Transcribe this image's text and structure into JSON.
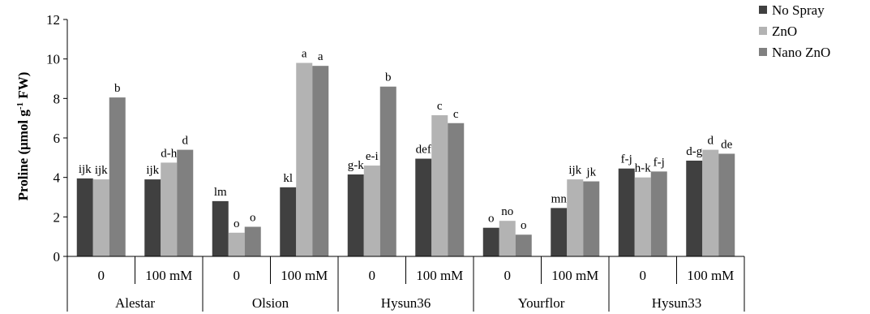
{
  "chart_data": {
    "type": "bar",
    "ylabel": "Proline (μmol g",
    "ylabel_sup": "-1",
    "ylabel_tail": " FW)",
    "ylim": [
      0,
      12
    ],
    "yticks": [
      "0",
      "2",
      "4",
      "6",
      "8",
      "10",
      "12"
    ],
    "grid": false,
    "legend_position": "top-right",
    "categories": [
      {
        "level1": "0",
        "group": "Alestar"
      },
      {
        "level1": "100 mM",
        "group": "Alestar"
      },
      {
        "level1": "0",
        "group": "Olsion"
      },
      {
        "level1": "100 mM",
        "group": "Olsion"
      },
      {
        "level1": "0",
        "group": "Hysun36"
      },
      {
        "level1": "100 mM",
        "group": "Hysun36"
      },
      {
        "level1": "0",
        "group": "Yourflor"
      },
      {
        "level1": "100 mM",
        "group": "Yourflor"
      },
      {
        "level1": "0",
        "group": "Hysun33"
      },
      {
        "level1": "100 mM",
        "group": "Hysun33"
      }
    ],
    "groups": [
      "Alestar",
      "Olsion",
      "Hysun36",
      "Yourflor",
      "Hysun33"
    ],
    "series": [
      {
        "name": "No Spray",
        "color": "#404040",
        "values": [
          3.95,
          3.9,
          2.8,
          3.5,
          4.15,
          4.95,
          1.45,
          2.45,
          4.45,
          4.85
        ],
        "labels": [
          "ijk",
          "ijk",
          "lm",
          "kl",
          "g-k",
          "def",
          "o",
          "mn",
          "f-j",
          "d-g"
        ]
      },
      {
        "name": "ZnO",
        "color": "#b3b3b3",
        "values": [
          3.9,
          4.75,
          1.2,
          9.8,
          4.6,
          7.15,
          1.8,
          3.9,
          4.0,
          5.4
        ],
        "labels": [
          "ijk",
          "d-h",
          "o",
          "a",
          "e-i",
          "c",
          "no",
          "ijk",
          "h-k",
          "d"
        ]
      },
      {
        "name": "Nano ZnO",
        "color": "#808080",
        "values": [
          8.05,
          5.4,
          1.5,
          9.65,
          8.6,
          6.75,
          1.1,
          3.8,
          4.3,
          5.2
        ],
        "labels": [
          "b",
          "d",
          "o",
          "a",
          "b",
          "c",
          "o",
          "jk",
          "f-j",
          "de"
        ]
      }
    ]
  }
}
